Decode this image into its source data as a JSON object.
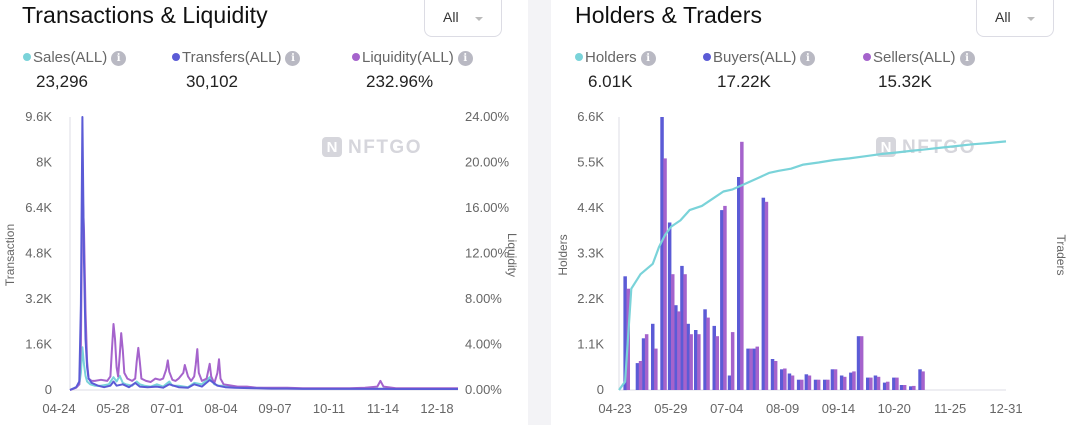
{
  "colors": {
    "sales": "#7ad3d9",
    "transfers": "#5b5bd6",
    "liquidity": "#a563cc",
    "holders": "#7ad3d9",
    "buyers": "#5b5bd6",
    "sellers": "#a563cc"
  },
  "icons": {
    "info": "info-icon",
    "dropdown": "chevron-down-icon",
    "watermark": "nftgo-logo"
  },
  "watermark": {
    "mark": "N",
    "text": "NFTGO"
  },
  "left_panel": {
    "title": "Transactions & Liquidity",
    "dropdown_label": "All",
    "info_glyph": "i",
    "legend": [
      {
        "label": "Sales(ALL)",
        "value": "23,296"
      },
      {
        "label": "Transfers(ALL)",
        "value": "30,102"
      },
      {
        "label": "Liquidity(ALL)",
        "value": "232.96%"
      }
    ]
  },
  "right_panel": {
    "title": "Holders & Traders",
    "dropdown_label": "All",
    "info_glyph": "i",
    "legend": [
      {
        "label": "Holders",
        "value": "6.01K"
      },
      {
        "label": "Buyers(ALL)",
        "value": "17.22K"
      },
      {
        "label": "Sellers(ALL)",
        "value": "15.32K"
      }
    ]
  },
  "chart_data": [
    {
      "type": "line",
      "ylabel": "Transaction",
      "y2label": "Liquidity",
      "ylim": [
        0,
        9600
      ],
      "y2lim": [
        0,
        24
      ],
      "y_ticks": [
        "0",
        "1.6K",
        "3.2K",
        "4.8K",
        "6.4K",
        "8K",
        "9.6K"
      ],
      "y2_ticks": [
        "0.00%",
        "4.00%",
        "8.00%",
        "12.00%",
        "16.00%",
        "20.00%",
        "24.00%"
      ],
      "x_ticks": [
        "04-24",
        "05-28",
        "07-01",
        "08-04",
        "09-07",
        "10-11",
        "11-14",
        "12-18"
      ],
      "x_range_days": [
        0,
        250
      ],
      "grid": false,
      "series": [
        {
          "name": "Sales(ALL)",
          "axis": "left",
          "color_key": "sales",
          "points": [
            [
              0,
              0
            ],
            [
              4,
              100
            ],
            [
              6,
              200
            ],
            [
              7,
              600
            ],
            [
              8,
              1500
            ],
            [
              9,
              900
            ],
            [
              10,
              500
            ],
            [
              11,
              300
            ],
            [
              13,
              200
            ],
            [
              16,
              150
            ],
            [
              20,
              150
            ],
            [
              25,
              200
            ],
            [
              28,
              450
            ],
            [
              30,
              300
            ],
            [
              32,
              500
            ],
            [
              34,
              250
            ],
            [
              36,
              200
            ],
            [
              40,
              150
            ],
            [
              43,
              300
            ],
            [
              45,
              200
            ],
            [
              48,
              150
            ],
            [
              52,
              120
            ],
            [
              56,
              200
            ],
            [
              60,
              120
            ],
            [
              64,
              300
            ],
            [
              66,
              150
            ],
            [
              70,
              150
            ],
            [
              76,
              100
            ],
            [
              80,
              250
            ],
            [
              85,
              200
            ],
            [
              90,
              450
            ],
            [
              93,
              200
            ],
            [
              96,
              150
            ],
            [
              100,
              150
            ],
            [
              104,
              130
            ],
            [
              108,
              100
            ],
            [
              112,
              100
            ],
            [
              115,
              100
            ],
            [
              120,
              80
            ],
            [
              130,
              60
            ],
            [
              140,
              60
            ],
            [
              150,
              50
            ],
            [
              160,
              50
            ],
            [
              170,
              50
            ],
            [
              180,
              50
            ],
            [
              190,
              50
            ],
            [
              200,
              45
            ],
            [
              210,
              45
            ],
            [
              220,
              40
            ],
            [
              230,
              40
            ],
            [
              240,
              40
            ],
            [
              250,
              40
            ]
          ]
        },
        {
          "name": "Transfers(ALL)",
          "axis": "left",
          "color_key": "transfers",
          "points": [
            [
              0,
              0
            ],
            [
              4,
              100
            ],
            [
              6,
              300
            ],
            [
              7,
              3000
            ],
            [
              8,
              9600
            ],
            [
              9,
              4500
            ],
            [
              10,
              1800
            ],
            [
              11,
              800
            ],
            [
              12,
              400
            ],
            [
              14,
              250
            ],
            [
              18,
              150
            ],
            [
              22,
              100
            ],
            [
              26,
              150
            ],
            [
              28,
              300
            ],
            [
              30,
              150
            ],
            [
              34,
              200
            ],
            [
              38,
              100
            ],
            [
              42,
              250
            ],
            [
              45,
              120
            ],
            [
              50,
              100
            ],
            [
              56,
              120
            ],
            [
              60,
              80
            ],
            [
              64,
              200
            ],
            [
              70,
              100
            ],
            [
              76,
              80
            ],
            [
              80,
              200
            ],
            [
              85,
              120
            ],
            [
              90,
              350
            ],
            [
              95,
              150
            ],
            [
              100,
              100
            ],
            [
              106,
              80
            ],
            [
              112,
              70
            ],
            [
              120,
              60
            ],
            [
              130,
              50
            ],
            [
              140,
              50
            ],
            [
              150,
              40
            ],
            [
              160,
              40
            ],
            [
              170,
              40
            ],
            [
              180,
              40
            ],
            [
              190,
              40
            ],
            [
              200,
              40
            ],
            [
              210,
              35
            ],
            [
              220,
              35
            ],
            [
              230,
              35
            ],
            [
              240,
              35
            ],
            [
              250,
              35
            ]
          ]
        },
        {
          "name": "Liquidity(ALL)",
          "axis": "right",
          "color_key": "liquidity",
          "points": [
            [
              0,
              0
            ],
            [
              4,
              0.2
            ],
            [
              6,
              0.5
            ],
            [
              7,
              4
            ],
            [
              8,
              17.8
            ],
            [
              9,
              14
            ],
            [
              10,
              7
            ],
            [
              11,
              2.5
            ],
            [
              12,
              1
            ],
            [
              14,
              0.8
            ],
            [
              16,
              0.8
            ],
            [
              20,
              0.9
            ],
            [
              24,
              0.8
            ],
            [
              26,
              1.2
            ],
            [
              27,
              3.5
            ],
            [
              28,
              5.8
            ],
            [
              29,
              4.5
            ],
            [
              30,
              2
            ],
            [
              31,
              1.2
            ],
            [
              32,
              3
            ],
            [
              33,
              5
            ],
            [
              34,
              3.5
            ],
            [
              35,
              1.5
            ],
            [
              37,
              1
            ],
            [
              40,
              0.8
            ],
            [
              42,
              1
            ],
            [
              43,
              2.5
            ],
            [
              44,
              3.7
            ],
            [
              45,
              2.5
            ],
            [
              46,
              1
            ],
            [
              49,
              0.8
            ],
            [
              52,
              0.7
            ],
            [
              55,
              1
            ],
            [
              58,
              0.9
            ],
            [
              60,
              1
            ],
            [
              62,
              1.8
            ],
            [
              63,
              2.6
            ],
            [
              64,
              1.6
            ],
            [
              66,
              0.9
            ],
            [
              68,
              0.8
            ],
            [
              70,
              1
            ],
            [
              73,
              1.5
            ],
            [
              74,
              2.2
            ],
            [
              76,
              1.2
            ],
            [
              78,
              0.8
            ],
            [
              80,
              1.2
            ],
            [
              81,
              2.2
            ],
            [
              82,
              3.6
            ],
            [
              83,
              1.5
            ],
            [
              85,
              0.8
            ],
            [
              88,
              1
            ],
            [
              90,
              2.3
            ],
            [
              91,
              1.2
            ],
            [
              93,
              0.6
            ],
            [
              95,
              1.5
            ],
            [
              96,
              2.7
            ],
            [
              97,
              1
            ],
            [
              99,
              0.5
            ],
            [
              103,
              0.4
            ],
            [
              108,
              0.3
            ],
            [
              114,
              0.3
            ],
            [
              120,
              0.2
            ],
            [
              130,
              0.2
            ],
            [
              140,
              0.2
            ],
            [
              150,
              0.15
            ],
            [
              160,
              0.15
            ],
            [
              170,
              0.15
            ],
            [
              180,
              0.15
            ],
            [
              190,
              0.2
            ],
            [
              198,
              0.3
            ],
            [
              200,
              0.8
            ],
            [
              202,
              0.3
            ],
            [
              210,
              0.15
            ],
            [
              220,
              0.15
            ],
            [
              230,
              0.15
            ],
            [
              240,
              0.15
            ],
            [
              250,
              0.15
            ]
          ]
        }
      ]
    },
    {
      "type": "bar",
      "ylabel": "Holders",
      "y2label": "Traders",
      "ylim": [
        0,
        6600
      ],
      "y_ticks": [
        "0",
        "1.1K",
        "2.2K",
        "3.3K",
        "4.4K",
        "5.5K",
        "6.6K"
      ],
      "x_ticks": [
        "04-23",
        "05-29",
        "07-04",
        "08-09",
        "09-14",
        "10-20",
        "11-25",
        "12-31"
      ],
      "x_range_days": [
        0,
        252
      ],
      "grid": false,
      "buyers_days": [
        4,
        12,
        16,
        22,
        28,
        33,
        37,
        41,
        45,
        50,
        56,
        62,
        67,
        72,
        78,
        84,
        88,
        94,
        100,
        106,
        111,
        117,
        122,
        128,
        134,
        139,
        145,
        151,
        156,
        162,
        167,
        173,
        179,
        184,
        190,
        196
      ],
      "buyers_values": [
        2750,
        650,
        1250,
        1600,
        6600,
        4050,
        2050,
        3000,
        1600,
        1450,
        1950,
        1550,
        4350,
        350,
        5150,
        1000,
        1000,
        4650,
        750,
        500,
        400,
        250,
        380,
        250,
        250,
        500,
        350,
        420,
        1300,
        300,
        350,
        180,
        300,
        120,
        90,
        500
      ],
      "sellers_days": [
        6,
        14,
        18,
        24,
        30,
        35,
        39,
        43,
        47,
        52,
        58,
        64,
        69,
        74,
        80,
        86,
        90,
        96,
        102,
        108,
        113,
        119,
        124,
        130,
        136,
        141,
        147,
        153,
        158,
        164,
        169,
        175,
        181,
        186,
        192,
        198
      ],
      "sellers_values": [
        2450,
        700,
        1350,
        1000,
        5600,
        2800,
        1900,
        2800,
        1350,
        1350,
        1750,
        1300,
        4450,
        1400,
        6000,
        1000,
        1050,
        4550,
        700,
        520,
        350,
        250,
        350,
        250,
        250,
        500,
        320,
        450,
        1300,
        300,
        320,
        200,
        300,
        120,
        100,
        450
      ],
      "holders_line_days": [
        0,
        4,
        8,
        14,
        22,
        26,
        30,
        34,
        40,
        46,
        54,
        62,
        68,
        74,
        80,
        86,
        92,
        98,
        104,
        112,
        120,
        130,
        140,
        150,
        160,
        170,
        180,
        190,
        200,
        210,
        220,
        230,
        240,
        252
      ],
      "holders_line_values": [
        0,
        200,
        2450,
        2800,
        3050,
        3450,
        3750,
        3950,
        4100,
        4350,
        4450,
        4650,
        4800,
        4850,
        4950,
        5050,
        5150,
        5250,
        5300,
        5350,
        5450,
        5500,
        5560,
        5600,
        5650,
        5700,
        5740,
        5780,
        5820,
        5860,
        5900,
        5940,
        5970,
        6010
      ]
    }
  ]
}
